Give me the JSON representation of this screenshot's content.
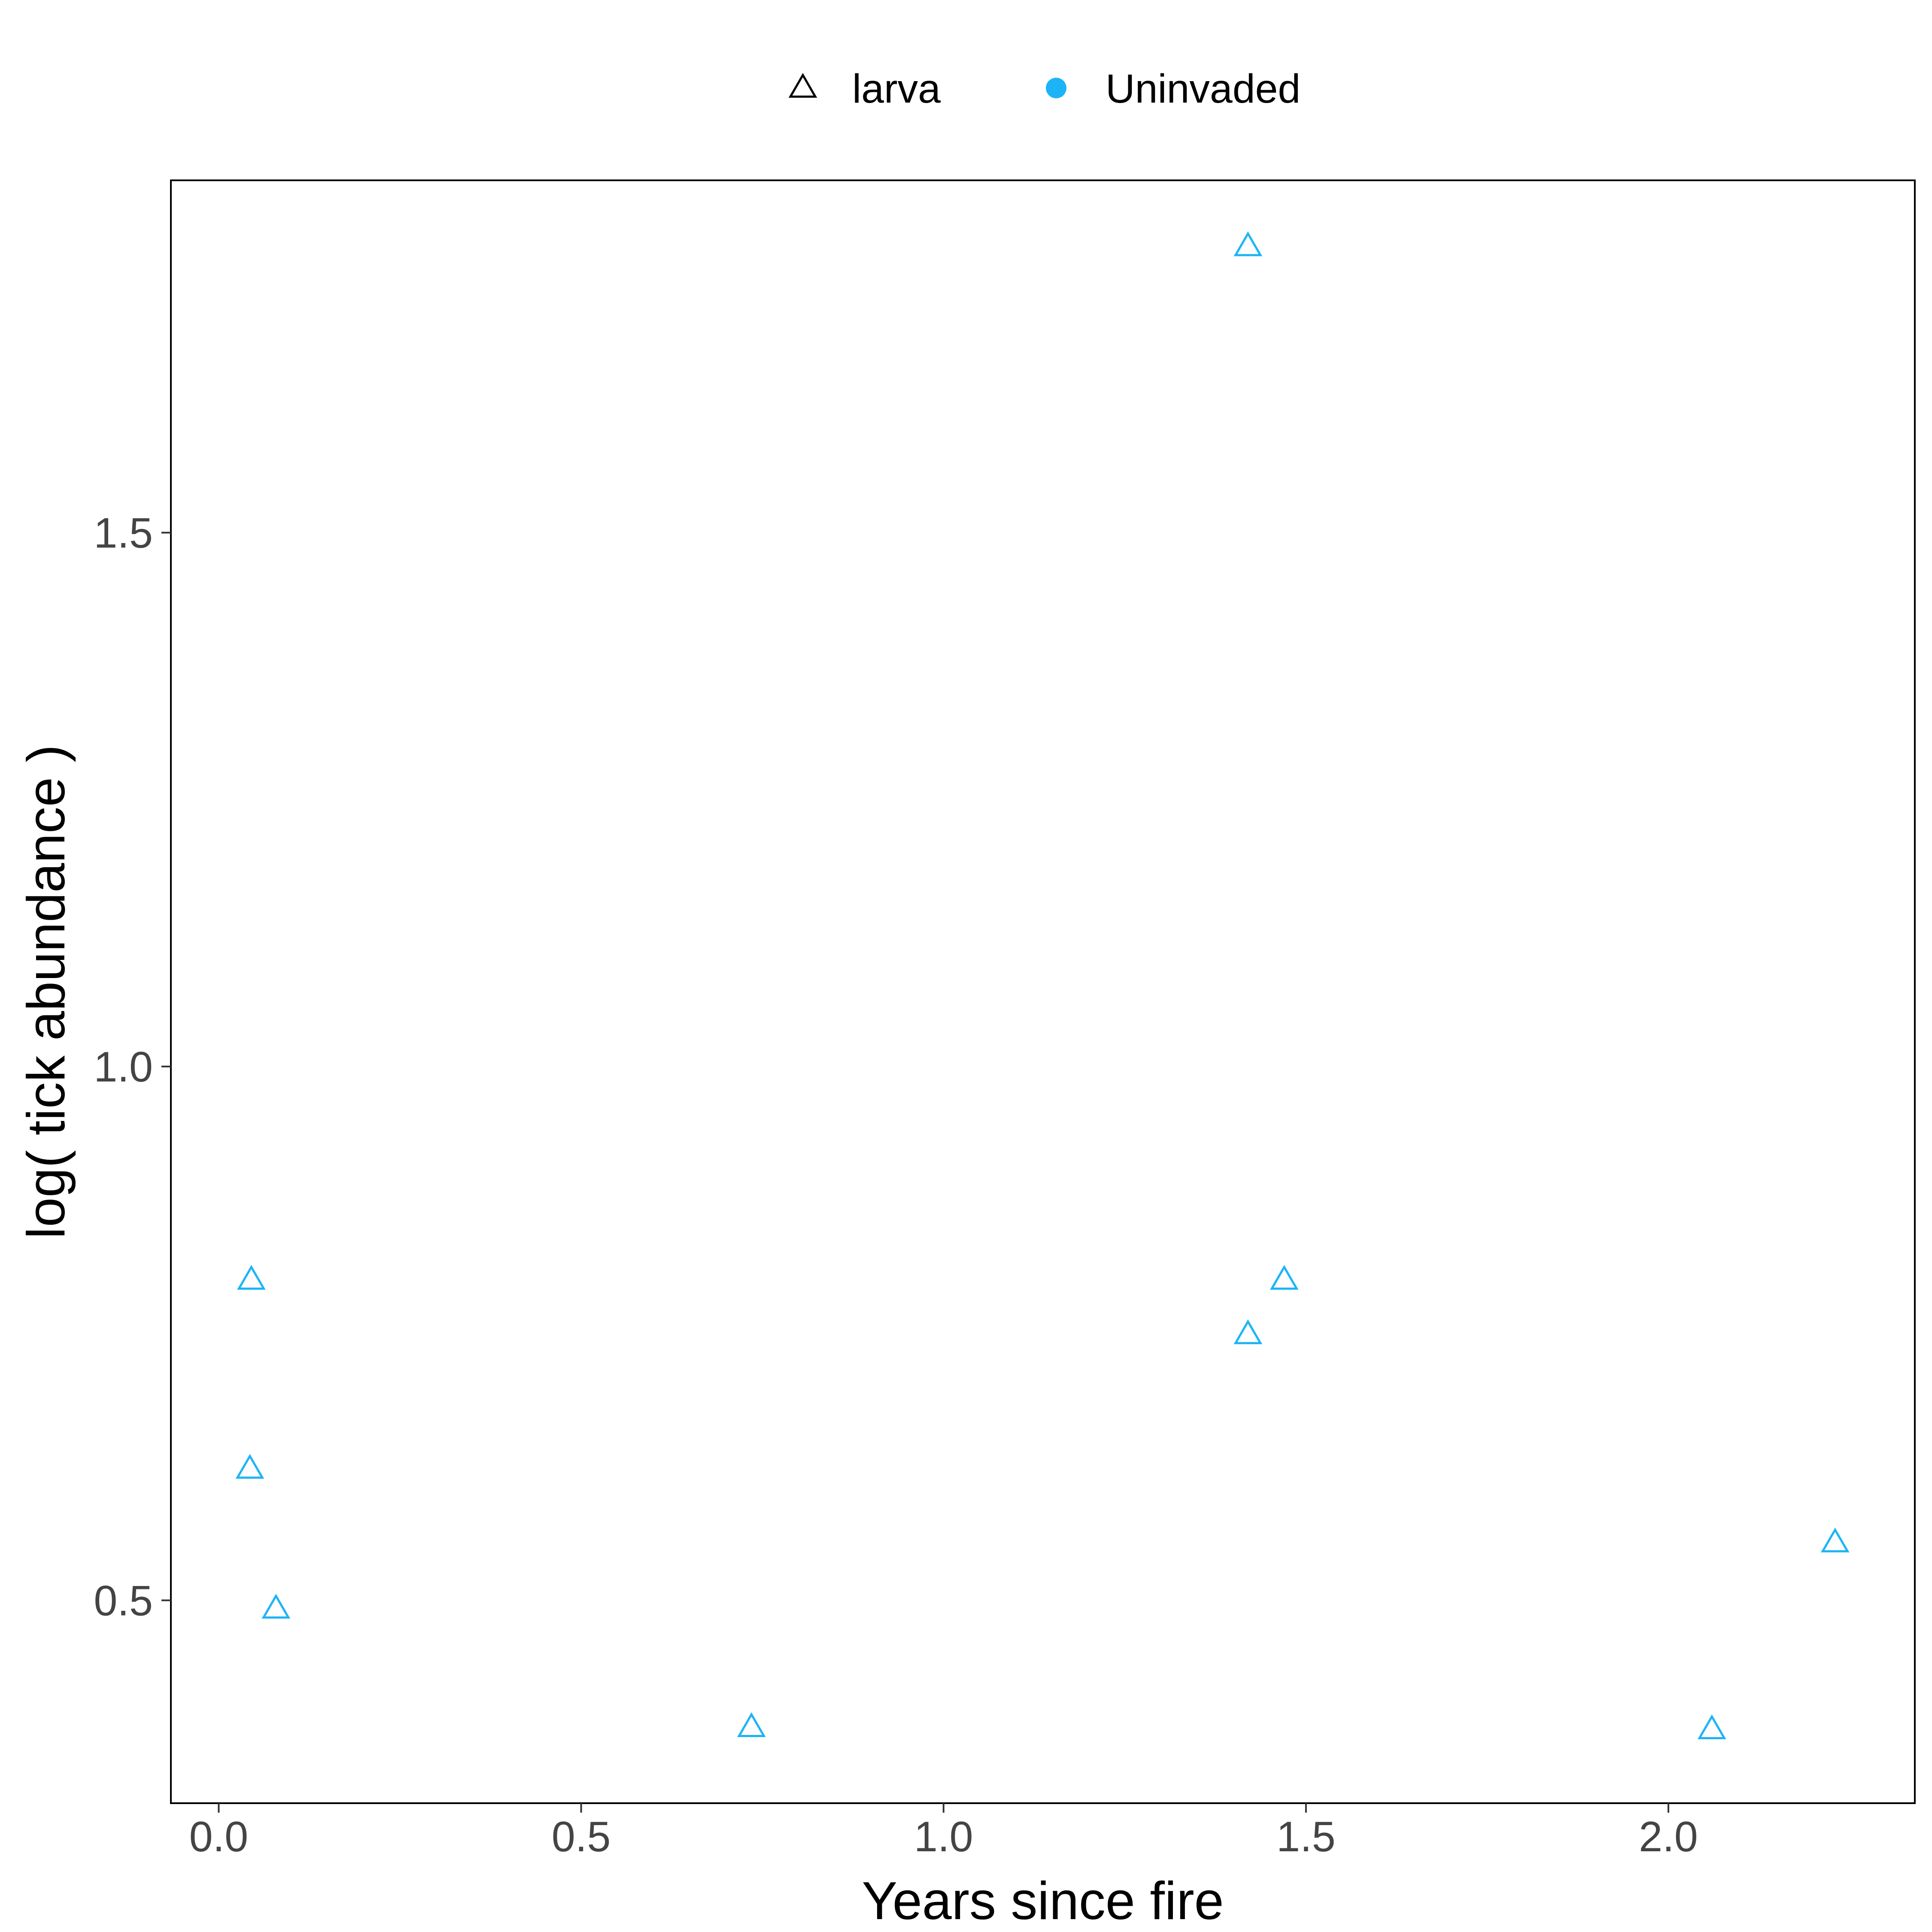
{
  "chart_data": {
    "type": "scatter",
    "xlabel": "Years since fire",
    "ylabel": "log( tick abundance )",
    "xlim": [
      -0.066,
      2.34
    ],
    "ylim": [
      0.31,
      1.83
    ],
    "x_ticks": [
      0.0,
      0.5,
      1.0,
      1.5,
      2.0
    ],
    "x_tick_labels": [
      "0.0",
      "0.5",
      "1.0",
      "1.5",
      "2.0"
    ],
    "y_ticks": [
      0.5,
      1.0,
      1.5
    ],
    "y_tick_labels": [
      "0.5",
      "1.0",
      "1.5"
    ],
    "grid": false,
    "legend": {
      "position": "top",
      "items": [
        {
          "label": "larva",
          "marker": "triangle-open",
          "color": "#000000"
        },
        {
          "label": "Uninvaded",
          "marker": "circle-filled",
          "color": "#1CB4F7"
        }
      ]
    },
    "series": [
      {
        "stage": "larva",
        "group": "Uninvaded",
        "color": "#1CB4F7",
        "marker": "triangle-open",
        "points": [
          {
            "x": 0.045,
            "y": 0.8
          },
          {
            "x": 0.043,
            "y": 0.623
          },
          {
            "x": 0.079,
            "y": 0.492
          },
          {
            "x": 0.735,
            "y": 0.381
          },
          {
            "x": 1.42,
            "y": 1.768
          },
          {
            "x": 1.42,
            "y": 0.749
          },
          {
            "x": 1.47,
            "y": 0.8
          },
          {
            "x": 2.06,
            "y": 0.379
          },
          {
            "x": 2.23,
            "y": 0.554
          }
        ]
      }
    ]
  }
}
